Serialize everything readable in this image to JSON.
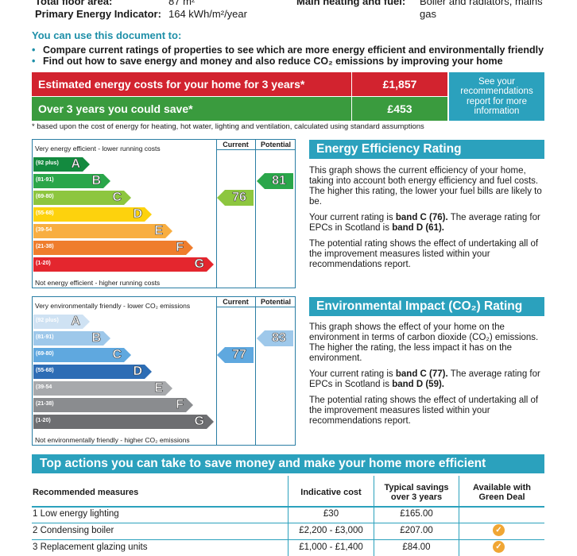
{
  "header": {
    "floor_area_label": "Total floor area:",
    "floor_area_value": "87 m²",
    "primary_energy_label": "Primary Energy Indicator:",
    "primary_energy_value": "164 kWh/m²/year",
    "heating_label": "Main heating and fuel:",
    "heating_value_line1": "Boiler and radiators, mains",
    "heating_value_line2": "gas"
  },
  "usage": {
    "heading": "You can use this document to:",
    "bullets": [
      "Compare current ratings of properties to see which are more energy efficient and environmentally friendly",
      "Find out how to save energy and money and also reduce CO₂ emissions by improving your home"
    ]
  },
  "costs": {
    "row1_label": "Estimated energy costs for your home for 3 years*",
    "row1_value": "£1,857",
    "row2_label": "Over 3 years you could save*",
    "row2_value": "£453",
    "see_line1": "See your",
    "see_line2": "recommendations",
    "see_line3": "report for more",
    "see_line4": "information",
    "footnote": "* based upon the cost of energy for heating, hot water, lighting and ventilation, calculated using standard assumptions",
    "colors": {
      "red": "#d2232f",
      "green": "#3a9b3e",
      "teal": "#2ba1bd"
    }
  },
  "energy_chart": {
    "top_label": "Very energy efficient - lower running costs",
    "bottom_label": "Not energy efficient - higher running costs",
    "current_header": "Current",
    "potential_header": "Potential",
    "bands": [
      {
        "range": "(92 plus)",
        "letter": "A",
        "color": "#138a3f"
      },
      {
        "range": "(81-91)",
        "letter": "B",
        "color": "#2aa64a"
      },
      {
        "range": "(69-80)",
        "letter": "C",
        "color": "#8dc63f"
      },
      {
        "range": "(55-68)",
        "letter": "D",
        "color": "#fdd20d"
      },
      {
        "range": "(39-54",
        "letter": "E",
        "color": "#f8ae41"
      },
      {
        "range": "(21-38)",
        "letter": "F",
        "color": "#ef7d2d"
      },
      {
        "range": "(1-20)",
        "letter": "G",
        "color": "#e4262e"
      }
    ],
    "current": {
      "value": "76",
      "band": "C",
      "color": "#8dc63f"
    },
    "potential": {
      "value": "81",
      "band": "B",
      "color": "#2aa64a"
    }
  },
  "energy_panel": {
    "title": "Energy Efficiency Rating",
    "para1": "This graph shows the current efficiency of your home, taking into account both energy efficiency and fuel costs. The higher this rating, the lower your fuel bills are likely to be.",
    "para2_pre": "Your current rating is ",
    "para2_bold1": "band C (76).",
    "para2_mid": " The average rating for EPCs in Scotland is ",
    "para2_bold2": "band D (61).",
    "para3": "The potential rating shows the effect of undertaking all of the improvement measures listed within your recommendations report."
  },
  "env_chart": {
    "top_label": "Very environmentally friendly - lower CO₂ emissions",
    "bottom_label": "Not environmentally friendly - higher CO₂ emissions",
    "current_header": "Current",
    "potential_header": "Potential",
    "bands": [
      {
        "range": "(92 plus)",
        "letter": "A",
        "color": "#cfe2f3"
      },
      {
        "range": "(81-91)",
        "letter": "B",
        "color": "#9ec8ea"
      },
      {
        "range": "(69-80)",
        "letter": "C",
        "color": "#5fa8df"
      },
      {
        "range": "(55-68)",
        "letter": "D",
        "color": "#2d6db5"
      },
      {
        "range": "(39-54",
        "letter": "E",
        "color": "#a7a9ac"
      },
      {
        "range": "(21-38)",
        "letter": "F",
        "color": "#8a8c8f"
      },
      {
        "range": "(1-20)",
        "letter": "G",
        "color": "#6d6e71"
      }
    ],
    "current": {
      "value": "77",
      "band": "C",
      "color": "#5fa8df"
    },
    "potential": {
      "value": "83",
      "band": "B",
      "color": "#9ec8ea"
    }
  },
  "env_panel": {
    "title": "Environmental Impact (CO₂) Rating",
    "para1": "This graph shows the effect of your home on the environment in terms of carbon dioxide (CO₂) emissions. The higher the rating, the less impact it has on the environment.",
    "para2_pre": "Your current rating is ",
    "para2_bold1": "band C (77).",
    "para2_mid": " The average rating for EPCs in Scotland is ",
    "para2_bold2": "band D (59).",
    "para3": "The potential rating shows the effect of undertaking all of the improvement measures listed within your recommendations report."
  },
  "actions": {
    "title": "Top actions you can take to save money and make your home more efficient",
    "col_measures": "Recommended measures",
    "col_cost": "Indicative cost",
    "col_savings_line1": "Typical savings",
    "col_savings_line2": "over 3 years",
    "col_green_line1": "Available with",
    "col_green_line2": "Green Deal",
    "rows": [
      {
        "measure": "1 Low energy lighting",
        "cost": "£30",
        "savings": "£165.00",
        "green_deal": false
      },
      {
        "measure": "2 Condensing boiler",
        "cost": "£2,200 - £3,000",
        "savings": "£207.00",
        "green_deal": true
      },
      {
        "measure": "3 Replacement glazing units",
        "cost": "£1,000 - £1,400",
        "savings": "£84.00",
        "green_deal": true
      }
    ]
  }
}
